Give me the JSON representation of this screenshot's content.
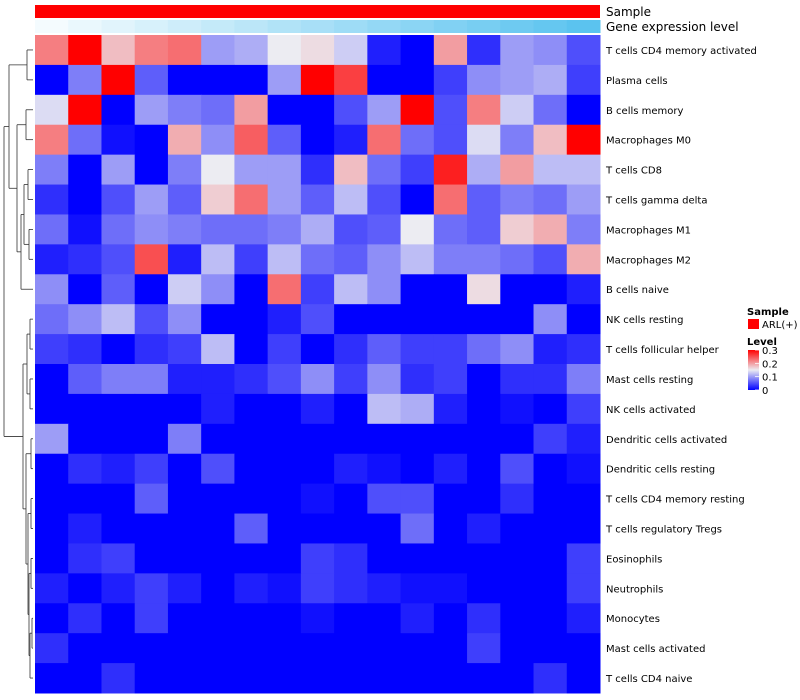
{
  "chart_data": {
    "type": "heatmap",
    "annotations": [
      {
        "name": "Sample",
        "value_label": "ARL(+)",
        "color": "#ff0000"
      },
      {
        "name": "Gene expression level",
        "gradient": [
          "#f4fbfe",
          "#5bc3ef"
        ]
      }
    ],
    "rows": [
      "T cells CD4 memory activated",
      "Plasma cells",
      "B cells memory",
      "Macrophages M0",
      "T cells CD8",
      "T cells gamma delta",
      "Macrophages M1",
      "Macrophages M2",
      "B cells naive",
      "NK cells resting",
      "T cells follicular helper",
      "Mast cells resting",
      "NK cells activated",
      "Dendritic cells activated",
      "Dendritic cells resting",
      "T cells CD4 memory resting",
      "T cells regulatory  Tregs",
      "Eosinophils",
      "Neutrophils",
      "Monocytes",
      "Mast cells activated",
      "T cells CD4 naive"
    ],
    "n_cols": 17,
    "values": [
      [
        0.22,
        0.3,
        0.18,
        0.22,
        0.23,
        0.1,
        0.11,
        0.15,
        0.16,
        0.13,
        0.02,
        0.0,
        0.2,
        0.03,
        0.1,
        0.09,
        0.05
      ],
      [
        0.0,
        0.08,
        0.3,
        0.06,
        0.0,
        0.0,
        0.0,
        0.1,
        0.3,
        0.26,
        0.0,
        0.0,
        0.04,
        0.09,
        0.1,
        0.11,
        0.04
      ],
      [
        0.14,
        0.3,
        0.0,
        0.1,
        0.08,
        0.07,
        0.2,
        0.0,
        0.0,
        0.05,
        0.1,
        0.3,
        0.05,
        0.22,
        0.13,
        0.07,
        0.0
      ],
      [
        0.22,
        0.07,
        0.01,
        0.0,
        0.19,
        0.09,
        0.24,
        0.06,
        0.0,
        0.02,
        0.23,
        0.07,
        0.05,
        0.14,
        0.08,
        0.18,
        0.3
      ],
      [
        0.08,
        0.0,
        0.1,
        0.0,
        0.08,
        0.15,
        0.1,
        0.1,
        0.03,
        0.18,
        0.07,
        0.04,
        0.28,
        0.11,
        0.2,
        0.12,
        0.12
      ],
      [
        0.03,
        0.0,
        0.05,
        0.1,
        0.06,
        0.17,
        0.23,
        0.1,
        0.06,
        0.12,
        0.05,
        0.0,
        0.23,
        0.06,
        0.08,
        0.07,
        0.1
      ],
      [
        0.07,
        0.01,
        0.07,
        0.09,
        0.08,
        0.07,
        0.07,
        0.08,
        0.11,
        0.05,
        0.06,
        0.15,
        0.07,
        0.06,
        0.17,
        0.19,
        0.08
      ],
      [
        0.02,
        0.03,
        0.05,
        0.25,
        0.02,
        0.12,
        0.04,
        0.12,
        0.07,
        0.06,
        0.09,
        0.12,
        0.08,
        0.08,
        0.07,
        0.05,
        0.19
      ],
      [
        0.09,
        0.0,
        0.06,
        0.0,
        0.13,
        0.09,
        0.0,
        0.23,
        0.04,
        0.12,
        0.09,
        0.0,
        0.0,
        0.16,
        0.0,
        0.0,
        0.02
      ],
      [
        0.07,
        0.09,
        0.12,
        0.05,
        0.09,
        0.0,
        0.0,
        0.02,
        0.05,
        0.0,
        0.0,
        0.0,
        0.0,
        0.0,
        0.0,
        0.09,
        0.0
      ],
      [
        0.04,
        0.03,
        0.0,
        0.03,
        0.04,
        0.12,
        0.0,
        0.04,
        0.0,
        0.03,
        0.06,
        0.04,
        0.04,
        0.07,
        0.09,
        0.02,
        0.03
      ],
      [
        0.0,
        0.06,
        0.08,
        0.08,
        0.02,
        0.02,
        0.03,
        0.05,
        0.09,
        0.04,
        0.09,
        0.03,
        0.04,
        0.0,
        0.03,
        0.03,
        0.08
      ],
      [
        0.0,
        0.0,
        0.0,
        0.0,
        0.0,
        0.02,
        0.0,
        0.0,
        0.02,
        0.0,
        0.12,
        0.11,
        0.02,
        0.0,
        0.01,
        0.0,
        0.04
      ],
      [
        0.1,
        0.0,
        0.0,
        0.0,
        0.08,
        0.0,
        0.0,
        0.0,
        0.0,
        0.0,
        0.0,
        0.0,
        0.0,
        0.0,
        0.0,
        0.04,
        0.02
      ],
      [
        0.0,
        0.03,
        0.02,
        0.04,
        0.0,
        0.05,
        0.0,
        0.0,
        0.0,
        0.02,
        0.01,
        0.0,
        0.02,
        0.0,
        0.05,
        0.0,
        0.01
      ],
      [
        0.0,
        0.0,
        0.0,
        0.06,
        0.0,
        0.0,
        0.0,
        0.0,
        0.01,
        0.0,
        0.05,
        0.05,
        0.0,
        0.0,
        0.03,
        0.0,
        0.0
      ],
      [
        0.0,
        0.02,
        0.0,
        0.0,
        0.0,
        0.0,
        0.06,
        0.0,
        0.0,
        0.0,
        0.0,
        0.07,
        0.0,
        0.02,
        0.0,
        0.0,
        0.0
      ],
      [
        0.0,
        0.03,
        0.04,
        0.0,
        0.0,
        0.0,
        0.0,
        0.0,
        0.04,
        0.03,
        0.0,
        0.0,
        0.0,
        0.0,
        0.0,
        0.0,
        0.04
      ],
      [
        0.02,
        0.0,
        0.02,
        0.04,
        0.02,
        0.0,
        0.02,
        0.01,
        0.04,
        0.03,
        0.02,
        0.01,
        0.01,
        0.0,
        0.0,
        0.0,
        0.04
      ],
      [
        0.0,
        0.03,
        0.0,
        0.04,
        0.0,
        0.0,
        0.0,
        0.0,
        0.01,
        0.0,
        0.0,
        0.02,
        0.0,
        0.03,
        0.0,
        0.0,
        0.02
      ],
      [
        0.03,
        0.0,
        0.0,
        0.0,
        0.0,
        0.0,
        0.0,
        0.0,
        0.0,
        0.0,
        0.0,
        0.0,
        0.0,
        0.04,
        0.0,
        0.0,
        0.0
      ],
      [
        0.0,
        0.0,
        0.03,
        0.0,
        0.0,
        0.0,
        0.0,
        0.0,
        0.0,
        0.0,
        0.0,
        0.0,
        0.0,
        0.0,
        0.0,
        0.03,
        0.0
      ]
    ],
    "color_scale": {
      "min": 0,
      "mid": 0.15,
      "max": 0.3,
      "low": "#0000ff",
      "midcolor": "#ececf2",
      "high": "#ff0000"
    },
    "dendrogram": "row",
    "legend": {
      "sample_title": "Sample",
      "sample_entry": "ARL(+)",
      "level_title": "Level",
      "level_ticks": [
        "0.3",
        "0.2",
        "0.1",
        "0"
      ],
      "level_tick_values": [
        0.3,
        0.2,
        0.1,
        0
      ],
      "placement": "right"
    }
  }
}
